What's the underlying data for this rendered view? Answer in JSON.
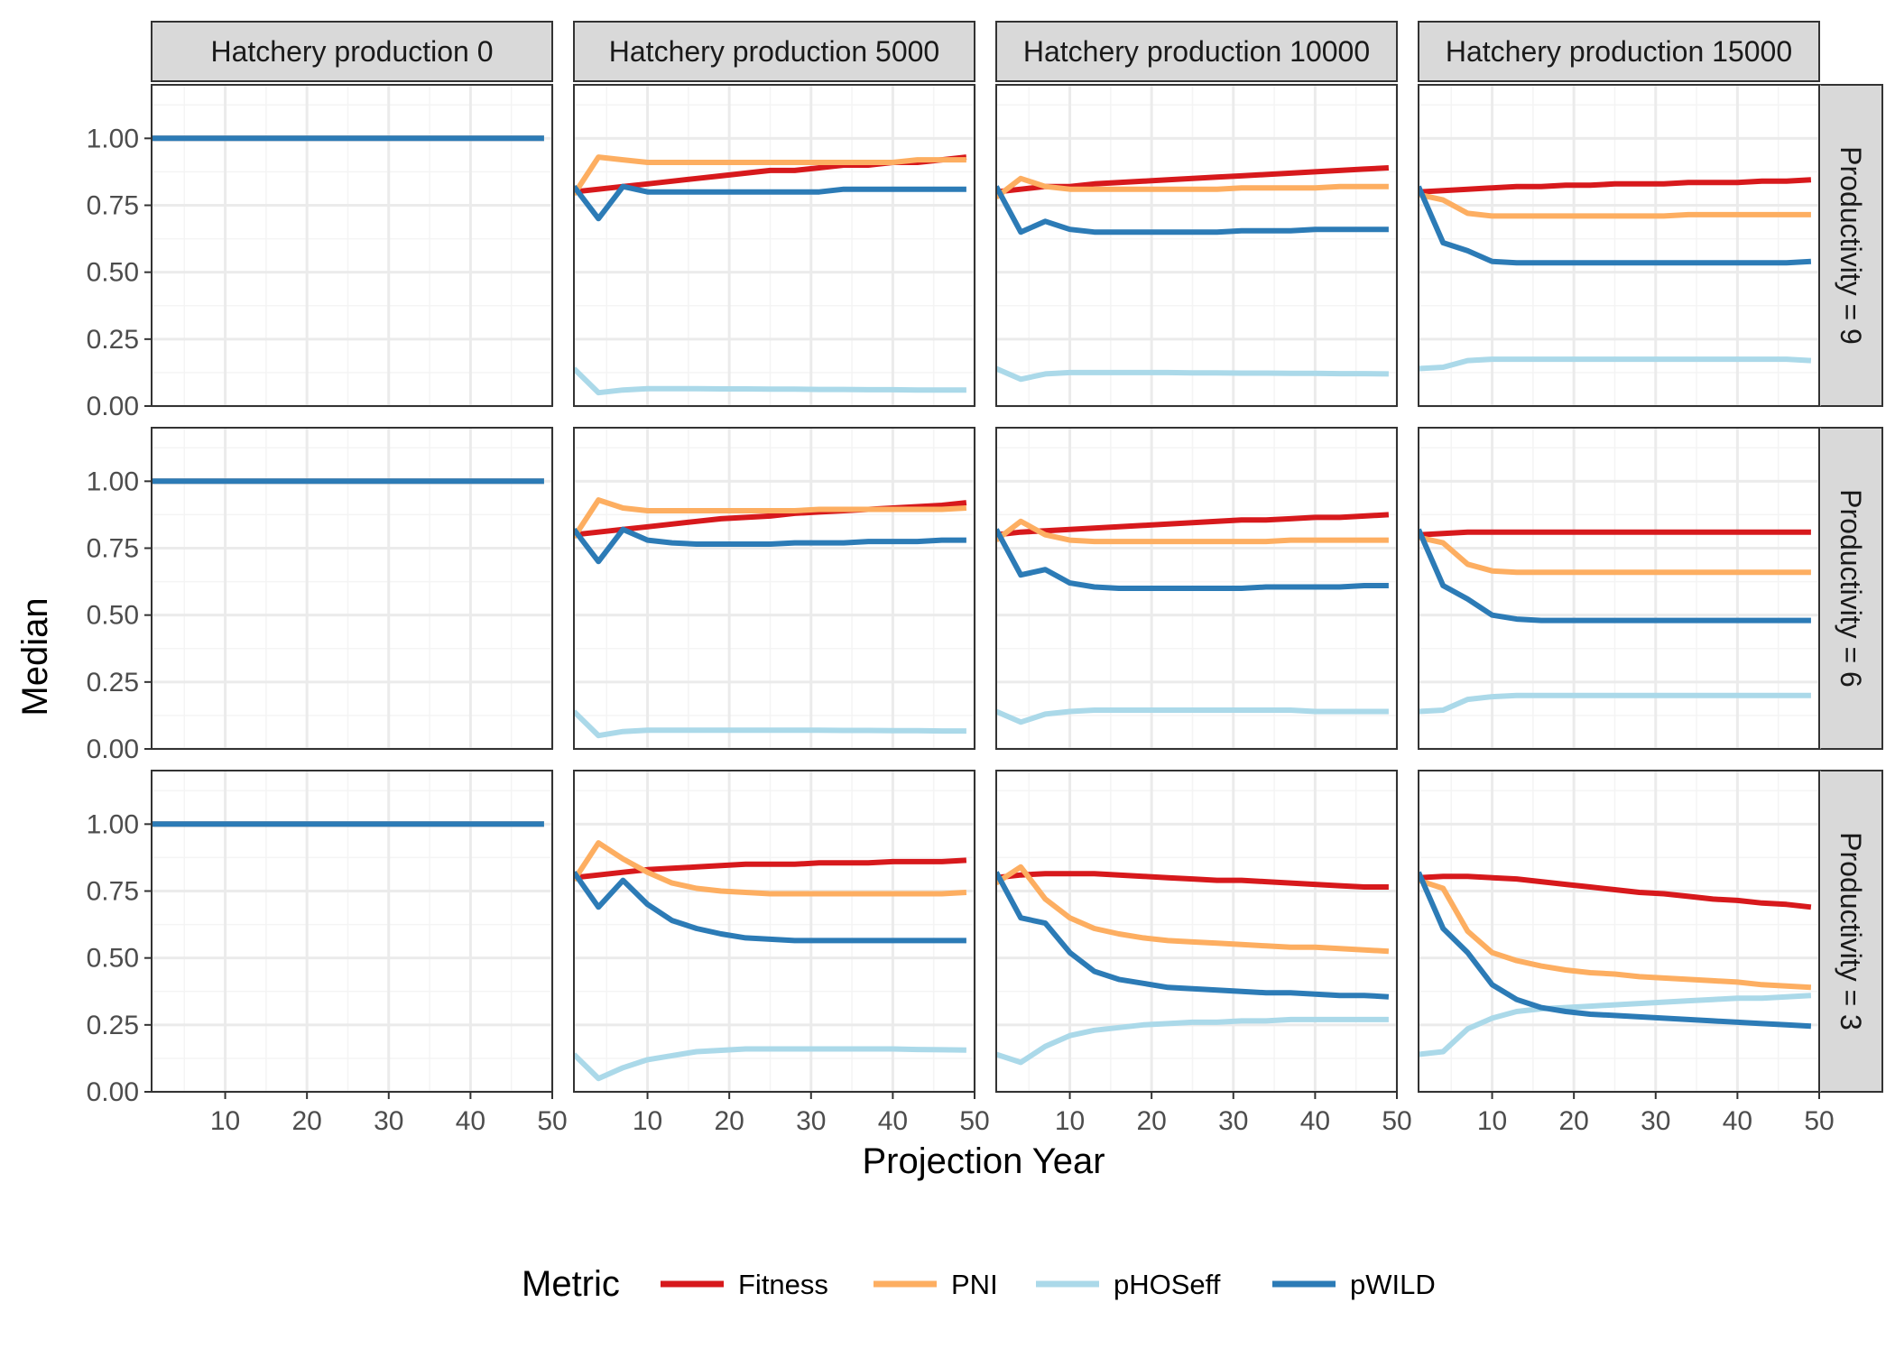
{
  "chart_data": {
    "type": "line",
    "xlabel": "Projection Year",
    "ylabel": "Median",
    "xlim": [
      1,
      50
    ],
    "ylim": [
      0,
      1.2
    ],
    "x_ticks": [
      10,
      20,
      30,
      40,
      50
    ],
    "y_ticks": [
      0,
      0.25,
      0.5,
      0.75,
      1.0
    ],
    "y_tick_labels": [
      "0.00",
      "0.25",
      "0.50",
      "0.75",
      "1.00"
    ],
    "grid": true,
    "legend": {
      "title": "Metric",
      "position": "bottom",
      "entries": [
        "Fitness",
        "PNI",
        "pHOSeff",
        "pWILD"
      ]
    },
    "colors": {
      "Fitness": "#d7191c",
      "PNI": "#fdae61",
      "pHOSeff": "#abd9e9",
      "pWILD": "#2c7bb6"
    },
    "columns": [
      "Hatchery production 0",
      "Hatchery production 5000",
      "Hatchery production 10000",
      "Hatchery production 15000"
    ],
    "rows": [
      "Productivity = 9",
      "Productivity = 6",
      "Productivity = 3"
    ],
    "x": [
      1,
      4,
      7,
      10,
      13,
      16,
      19,
      22,
      25,
      28,
      31,
      34,
      37,
      40,
      43,
      46,
      49
    ],
    "panels": [
      [
        {
          "Fitness": [
            1,
            1,
            1,
            1,
            1,
            1,
            1,
            1,
            1,
            1,
            1,
            1,
            1,
            1,
            1,
            1,
            1
          ],
          "PNI": [
            1,
            1,
            1,
            1,
            1,
            1,
            1,
            1,
            1,
            1,
            1,
            1,
            1,
            1,
            1,
            1,
            1
          ],
          "pHOSeff": [
            1,
            1,
            1,
            1,
            1,
            1,
            1,
            1,
            1,
            1,
            1,
            1,
            1,
            1,
            1,
            1,
            1
          ],
          "pWILD": [
            1,
            1,
            1,
            1,
            1,
            1,
            1,
            1,
            1,
            1,
            1,
            1,
            1,
            1,
            1,
            1,
            1
          ]
        },
        {
          "Fitness": [
            0.8,
            0.81,
            0.82,
            0.83,
            0.84,
            0.85,
            0.86,
            0.87,
            0.88,
            0.88,
            0.89,
            0.9,
            0.9,
            0.91,
            0.91,
            0.92,
            0.93
          ],
          "PNI": [
            0.79,
            0.93,
            0.92,
            0.91,
            0.91,
            0.91,
            0.91,
            0.91,
            0.91,
            0.91,
            0.91,
            0.91,
            0.91,
            0.91,
            0.92,
            0.92,
            0.92
          ],
          "pHOSeff": [
            0.14,
            0.05,
            0.06,
            0.065,
            0.065,
            0.065,
            0.064,
            0.064,
            0.063,
            0.063,
            0.062,
            0.062,
            0.061,
            0.061,
            0.06,
            0.06,
            0.06
          ],
          "pWILD": [
            0.82,
            0.7,
            0.82,
            0.8,
            0.8,
            0.8,
            0.8,
            0.8,
            0.8,
            0.8,
            0.8,
            0.81,
            0.81,
            0.81,
            0.81,
            0.81,
            0.81
          ]
        },
        {
          "Fitness": [
            0.8,
            0.81,
            0.82,
            0.82,
            0.83,
            0.835,
            0.84,
            0.845,
            0.85,
            0.855,
            0.86,
            0.865,
            0.87,
            0.875,
            0.88,
            0.885,
            0.89
          ],
          "PNI": [
            0.78,
            0.85,
            0.82,
            0.81,
            0.81,
            0.81,
            0.81,
            0.81,
            0.81,
            0.81,
            0.815,
            0.815,
            0.815,
            0.815,
            0.82,
            0.82,
            0.82
          ],
          "pHOSeff": [
            0.14,
            0.1,
            0.12,
            0.125,
            0.125,
            0.125,
            0.125,
            0.125,
            0.124,
            0.124,
            0.123,
            0.123,
            0.122,
            0.122,
            0.121,
            0.121,
            0.12
          ],
          "pWILD": [
            0.82,
            0.65,
            0.69,
            0.66,
            0.65,
            0.65,
            0.65,
            0.65,
            0.65,
            0.65,
            0.655,
            0.655,
            0.655,
            0.66,
            0.66,
            0.66,
            0.66
          ]
        },
        {
          "Fitness": [
            0.8,
            0.805,
            0.81,
            0.815,
            0.82,
            0.82,
            0.825,
            0.825,
            0.83,
            0.83,
            0.83,
            0.835,
            0.835,
            0.835,
            0.84,
            0.84,
            0.845
          ],
          "PNI": [
            0.79,
            0.77,
            0.72,
            0.71,
            0.71,
            0.71,
            0.71,
            0.71,
            0.71,
            0.71,
            0.71,
            0.715,
            0.715,
            0.715,
            0.715,
            0.715,
            0.715
          ],
          "pHOSeff": [
            0.14,
            0.145,
            0.17,
            0.175,
            0.175,
            0.175,
            0.175,
            0.175,
            0.175,
            0.175,
            0.175,
            0.175,
            0.175,
            0.175,
            0.175,
            0.175,
            0.17
          ],
          "pWILD": [
            0.82,
            0.61,
            0.58,
            0.54,
            0.535,
            0.535,
            0.535,
            0.535,
            0.535,
            0.535,
            0.535,
            0.535,
            0.535,
            0.535,
            0.535,
            0.535,
            0.54
          ]
        }
      ],
      [
        {
          "Fitness": [
            1,
            1,
            1,
            1,
            1,
            1,
            1,
            1,
            1,
            1,
            1,
            1,
            1,
            1,
            1,
            1,
            1
          ],
          "PNI": [
            1,
            1,
            1,
            1,
            1,
            1,
            1,
            1,
            1,
            1,
            1,
            1,
            1,
            1,
            1,
            1,
            1
          ],
          "pHOSeff": [
            1,
            1,
            1,
            1,
            1,
            1,
            1,
            1,
            1,
            1,
            1,
            1,
            1,
            1,
            1,
            1,
            1
          ],
          "pWILD": [
            1,
            1,
            1,
            1,
            1,
            1,
            1,
            1,
            1,
            1,
            1,
            1,
            1,
            1,
            1,
            1,
            1
          ]
        },
        {
          "Fitness": [
            0.8,
            0.81,
            0.82,
            0.83,
            0.84,
            0.85,
            0.86,
            0.865,
            0.87,
            0.88,
            0.885,
            0.89,
            0.895,
            0.9,
            0.905,
            0.91,
            0.92
          ],
          "PNI": [
            0.79,
            0.93,
            0.9,
            0.89,
            0.89,
            0.89,
            0.89,
            0.89,
            0.89,
            0.89,
            0.895,
            0.895,
            0.895,
            0.895,
            0.895,
            0.895,
            0.9
          ],
          "pHOSeff": [
            0.14,
            0.05,
            0.065,
            0.07,
            0.07,
            0.07,
            0.07,
            0.07,
            0.07,
            0.07,
            0.07,
            0.069,
            0.069,
            0.068,
            0.068,
            0.067,
            0.067
          ],
          "pWILD": [
            0.82,
            0.7,
            0.82,
            0.78,
            0.77,
            0.765,
            0.765,
            0.765,
            0.765,
            0.77,
            0.77,
            0.77,
            0.775,
            0.775,
            0.775,
            0.78,
            0.78
          ]
        },
        {
          "Fitness": [
            0.8,
            0.81,
            0.815,
            0.82,
            0.825,
            0.83,
            0.835,
            0.84,
            0.845,
            0.85,
            0.855,
            0.855,
            0.86,
            0.865,
            0.865,
            0.87,
            0.875
          ],
          "PNI": [
            0.78,
            0.85,
            0.8,
            0.78,
            0.775,
            0.775,
            0.775,
            0.775,
            0.775,
            0.775,
            0.775,
            0.775,
            0.78,
            0.78,
            0.78,
            0.78,
            0.78
          ],
          "pHOSeff": [
            0.14,
            0.1,
            0.13,
            0.14,
            0.145,
            0.145,
            0.145,
            0.145,
            0.145,
            0.145,
            0.145,
            0.145,
            0.145,
            0.14,
            0.14,
            0.14,
            0.14
          ],
          "pWILD": [
            0.82,
            0.65,
            0.67,
            0.62,
            0.605,
            0.6,
            0.6,
            0.6,
            0.6,
            0.6,
            0.6,
            0.605,
            0.605,
            0.605,
            0.605,
            0.61,
            0.61
          ]
        },
        {
          "Fitness": [
            0.8,
            0.805,
            0.81,
            0.81,
            0.81,
            0.81,
            0.81,
            0.81,
            0.81,
            0.81,
            0.81,
            0.81,
            0.81,
            0.81,
            0.81,
            0.81,
            0.81
          ],
          "PNI": [
            0.79,
            0.77,
            0.69,
            0.665,
            0.66,
            0.66,
            0.66,
            0.66,
            0.66,
            0.66,
            0.66,
            0.66,
            0.66,
            0.66,
            0.66,
            0.66,
            0.66
          ],
          "pHOSeff": [
            0.14,
            0.145,
            0.185,
            0.195,
            0.2,
            0.2,
            0.2,
            0.2,
            0.2,
            0.2,
            0.2,
            0.2,
            0.2,
            0.2,
            0.2,
            0.2,
            0.2
          ],
          "pWILD": [
            0.82,
            0.61,
            0.56,
            0.5,
            0.485,
            0.48,
            0.48,
            0.48,
            0.48,
            0.48,
            0.48,
            0.48,
            0.48,
            0.48,
            0.48,
            0.48,
            0.48
          ]
        }
      ],
      [
        {
          "Fitness": [
            1,
            1,
            1,
            1,
            1,
            1,
            1,
            1,
            1,
            1,
            1,
            1,
            1,
            1,
            1,
            1,
            1
          ],
          "PNI": [
            1,
            1,
            1,
            1,
            1,
            1,
            1,
            1,
            1,
            1,
            1,
            1,
            1,
            1,
            1,
            1,
            1
          ],
          "pHOSeff": [
            1,
            1,
            1,
            1,
            1,
            1,
            1,
            1,
            1,
            1,
            1,
            1,
            1,
            1,
            1,
            1,
            1
          ],
          "pWILD": [
            1,
            1,
            1,
            1,
            1,
            1,
            1,
            1,
            1,
            1,
            1,
            1,
            1,
            1,
            1,
            1,
            1
          ]
        },
        {
          "Fitness": [
            0.8,
            0.81,
            0.82,
            0.83,
            0.835,
            0.84,
            0.845,
            0.85,
            0.85,
            0.85,
            0.855,
            0.855,
            0.855,
            0.86,
            0.86,
            0.86,
            0.865
          ],
          "PNI": [
            0.79,
            0.93,
            0.87,
            0.82,
            0.78,
            0.76,
            0.75,
            0.745,
            0.74,
            0.74,
            0.74,
            0.74,
            0.74,
            0.74,
            0.74,
            0.74,
            0.745
          ],
          "pHOSeff": [
            0.14,
            0.05,
            0.09,
            0.12,
            0.135,
            0.15,
            0.155,
            0.16,
            0.16,
            0.16,
            0.16,
            0.16,
            0.16,
            0.16,
            0.158,
            0.157,
            0.156
          ],
          "pWILD": [
            0.82,
            0.69,
            0.79,
            0.7,
            0.64,
            0.61,
            0.59,
            0.575,
            0.57,
            0.565,
            0.565,
            0.565,
            0.565,
            0.565,
            0.565,
            0.565,
            0.565
          ]
        },
        {
          "Fitness": [
            0.8,
            0.81,
            0.815,
            0.815,
            0.815,
            0.81,
            0.805,
            0.8,
            0.795,
            0.79,
            0.79,
            0.785,
            0.78,
            0.775,
            0.77,
            0.765,
            0.765
          ],
          "PNI": [
            0.78,
            0.84,
            0.72,
            0.65,
            0.61,
            0.59,
            0.575,
            0.565,
            0.56,
            0.555,
            0.55,
            0.545,
            0.54,
            0.54,
            0.535,
            0.53,
            0.525
          ],
          "pHOSeff": [
            0.14,
            0.11,
            0.17,
            0.21,
            0.23,
            0.24,
            0.25,
            0.255,
            0.26,
            0.26,
            0.265,
            0.265,
            0.27,
            0.27,
            0.27,
            0.27,
            0.27
          ],
          "pWILD": [
            0.82,
            0.65,
            0.63,
            0.52,
            0.45,
            0.42,
            0.405,
            0.39,
            0.385,
            0.38,
            0.375,
            0.37,
            0.37,
            0.365,
            0.36,
            0.36,
            0.355
          ]
        },
        {
          "Fitness": [
            0.8,
            0.805,
            0.805,
            0.8,
            0.795,
            0.785,
            0.775,
            0.765,
            0.755,
            0.745,
            0.74,
            0.73,
            0.72,
            0.715,
            0.705,
            0.7,
            0.69
          ],
          "PNI": [
            0.79,
            0.76,
            0.6,
            0.52,
            0.49,
            0.47,
            0.455,
            0.445,
            0.44,
            0.43,
            0.425,
            0.42,
            0.415,
            0.41,
            0.4,
            0.395,
            0.39
          ],
          "pHOSeff": [
            0.14,
            0.15,
            0.235,
            0.275,
            0.3,
            0.31,
            0.315,
            0.32,
            0.325,
            0.33,
            0.335,
            0.34,
            0.345,
            0.35,
            0.35,
            0.355,
            0.36
          ],
          "pWILD": [
            0.82,
            0.61,
            0.52,
            0.4,
            0.345,
            0.315,
            0.3,
            0.29,
            0.285,
            0.28,
            0.275,
            0.27,
            0.265,
            0.26,
            0.255,
            0.25,
            0.245
          ]
        }
      ]
    ]
  }
}
